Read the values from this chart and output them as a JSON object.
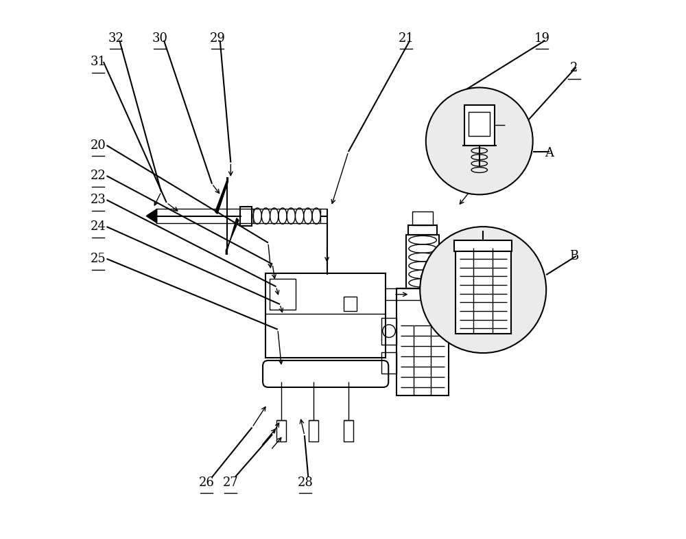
{
  "bg_color": "#ffffff",
  "line_color": "#000000",
  "fig_width": 10.0,
  "fig_height": 7.85
}
